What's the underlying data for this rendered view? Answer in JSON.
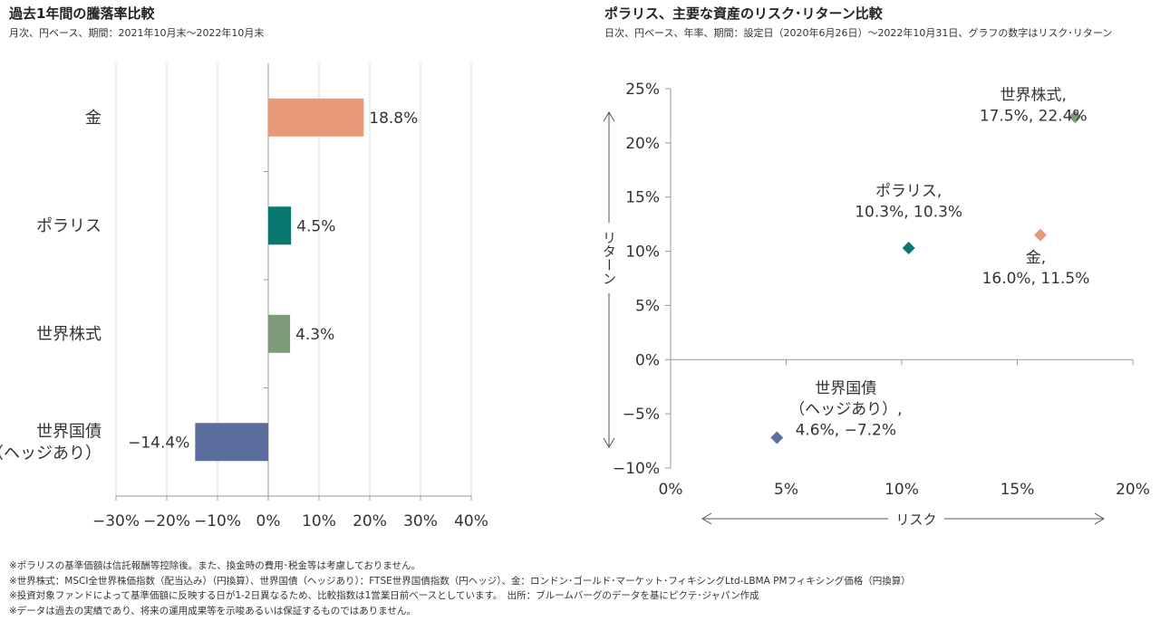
{
  "chart_data": [
    {
      "type": "bar",
      "orientation": "horizontal",
      "title": "過去1年間の騰落率比較",
      "subtitle": "月次、円ベース、期間：2021年10月末～2022年10月末",
      "categories": [
        "金",
        "ポラリス",
        "世界株式",
        "世界国債\n（ヘッジあり）"
      ],
      "values": [
        18.8,
        4.5,
        4.3,
        -14.4
      ],
      "value_labels": [
        "18.8%",
        "4.5%",
        "4.3%",
        "−14.4%"
      ],
      "colors": [
        "#e8997a",
        "#0a7771",
        "#7d9a79",
        "#5b6e9d"
      ],
      "xlim": [
        -30,
        40
      ],
      "xticks": [
        -30,
        -20,
        -10,
        0,
        10,
        20,
        30,
        40
      ],
      "xtick_labels": [
        "−30%",
        "−20%",
        "−10%",
        "0%",
        "10%",
        "20%",
        "30%",
        "40%"
      ],
      "grid": "vertical"
    },
    {
      "type": "scatter",
      "title": "ポラリス、主要な資産のリスク･リターン比較",
      "subtitle": "日次、円ベース、年率、期間：設定日（2020年6月26日）～2022年10月31日、グラフの数字はリスク･リターン",
      "xlabel": "リスク",
      "ylabel": "リターン",
      "xlim": [
        0,
        20
      ],
      "ylim": [
        -10,
        25
      ],
      "xticks": [
        0,
        5,
        10,
        15,
        20
      ],
      "xtick_labels": [
        "0%",
        "5%",
        "10%",
        "15%",
        "20%"
      ],
      "yticks": [
        -10,
        -5,
        0,
        5,
        10,
        15,
        20,
        25
      ],
      "ytick_labels": [
        "−10%",
        "−5%",
        "0%",
        "5%",
        "10%",
        "15%",
        "20%",
        "25%"
      ],
      "points": [
        {
          "x": 17.5,
          "y": 22.4,
          "color": "#7d9a79",
          "label": [
            "世界株式,",
            "17.5%, 22.4%"
          ]
        },
        {
          "x": 10.3,
          "y": 10.3,
          "color": "#0a7771",
          "label": [
            "ポラリス,",
            "10.3%, 10.3%"
          ]
        },
        {
          "x": 16.0,
          "y": 11.5,
          "color": "#e8997a",
          "label": [
            "金,",
            "16.0%, 11.5%"
          ]
        },
        {
          "x": 4.6,
          "y": -7.2,
          "color": "#5b6e9d",
          "label": [
            "世界国債",
            "（ヘッジあり）,",
            "4.6%, −7.2%"
          ]
        }
      ]
    }
  ],
  "notes": [
    "※ポラリスの基準価額は信託報酬等控除後。また、換金時の費用･税金等は考慮しておりません。",
    "※世界株式：MSCI全世界株価指数（配当込み）（円換算）、世界国債（ヘッジあり）：FTSE世界国債指数（円ヘッジ）、金：ロンドン･ゴールド･マーケット･フィキシングLtd-LBMA PMフィキシング価格（円換算）",
    "※投資対象ファンドによって基準価額に反映する日が1-2日異なるため、比較指数は1営業日前ベースとしています。　出所：ブルームバーグのデータを基にピクテ･ジャパン作成",
    "※データは過去の実績であり、将来の運用成果等を示唆あるいは保証するものではありません。"
  ]
}
